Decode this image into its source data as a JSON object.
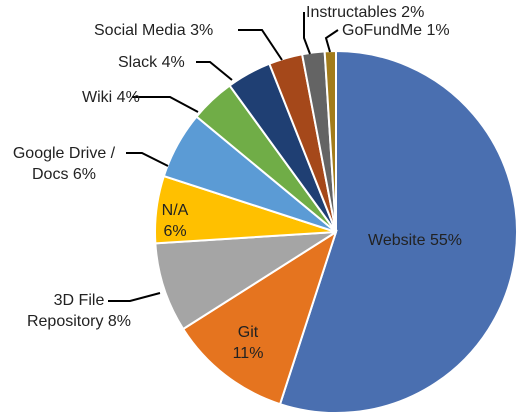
{
  "chart_data": {
    "type": "pie",
    "categories": [
      "Website",
      "Git",
      "3D File Repository",
      "N/A",
      "Google Drive / Docs",
      "Wiki",
      "Slack",
      "Social Media",
      "Instructables",
      "GoFundMe"
    ],
    "values": [
      55,
      11,
      8,
      6,
      6,
      4,
      4,
      3,
      2,
      1
    ],
    "value_labels": [
      "55%",
      "11%",
      "8%",
      "6%",
      "6%",
      "4%",
      "4%",
      "3%",
      "2%",
      "1%"
    ],
    "colors": [
      "#4a6fb0",
      "#e5741f",
      "#a5a5a5",
      "#ffc000",
      "#5b9bd5",
      "#70ad47",
      "#1f3f73",
      "#a5481a",
      "#646464",
      "#a27c1c"
    ]
  }
}
